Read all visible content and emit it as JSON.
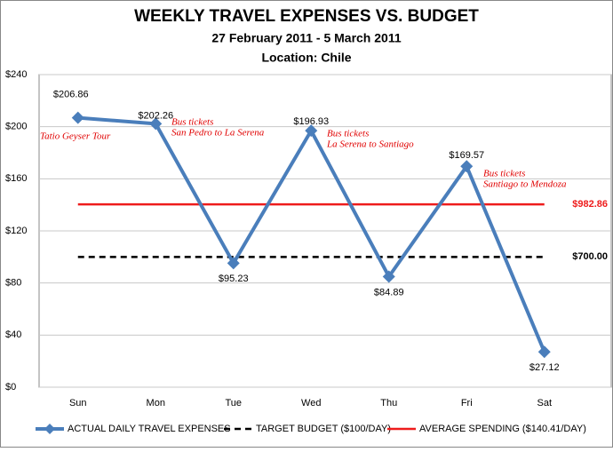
{
  "chart_data": {
    "type": "line",
    "title": "WEEKLY TRAVEL EXPENSES VS. BUDGET",
    "subtitle": "27 February 2011 - 5 March 2011",
    "location": "Location: Chile",
    "categories": [
      "Sun",
      "Mon",
      "Tue",
      "Wed",
      "Thu",
      "Fri",
      "Sat"
    ],
    "series": [
      {
        "name": "ACTUAL DAILY TRAVEL EXPENSES",
        "color": "#4a7ebb",
        "values": [
          206.86,
          202.26,
          95.23,
          196.93,
          84.89,
          169.57,
          27.12
        ],
        "value_labels": [
          "$206.86",
          "$202.26",
          "$95.23",
          "$196.93",
          "$84.89",
          "$169.57",
          "$27.12"
        ]
      }
    ],
    "reference_lines": [
      {
        "name": "TARGET BUDGET ($100/DAY)",
        "value": 100,
        "color": "#000000",
        "style": "dashed",
        "total_label": "$700.00"
      },
      {
        "name": "AVERAGE SPENDING ($140.41/DAY)",
        "value": 140.41,
        "color": "#ee1c1c",
        "style": "solid",
        "total_label": "$982.86"
      }
    ],
    "annotations": [
      [
        "Tatio Geyser Tour"
      ],
      [
        "Bus tickets",
        "San Pedro to La Serena"
      ],
      [
        "Bus tickets",
        "La Serena to Santiago"
      ],
      [
        "Bus tickets",
        "Santiago to Mendoza"
      ]
    ],
    "annotation_color": "#e00000",
    "ylim": [
      0,
      240
    ],
    "yticks": [
      {
        "value": 0,
        "label": "$0"
      },
      {
        "value": 40,
        "label": "$40"
      },
      {
        "value": 80,
        "label": "$80"
      },
      {
        "value": 120,
        "label": "$120"
      },
      {
        "value": 160,
        "label": "$160"
      },
      {
        "value": 200,
        "label": "$200"
      },
      {
        "value": 240,
        "label": "$240"
      }
    ],
    "grid": true
  }
}
